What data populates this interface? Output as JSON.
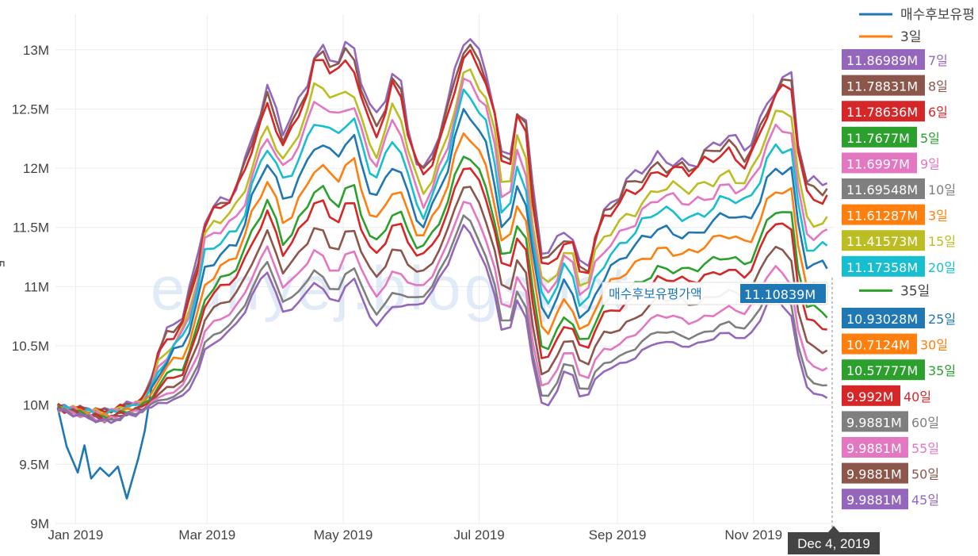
{
  "colors": {
    "s3": "#ff7f0e",
    "s5": "#2ca02c",
    "s6": "#d62728",
    "s7": "#9467bd",
    "s8": "#8c564b",
    "s9": "#e377c2",
    "s10": "#7f7f7f",
    "s15": "#bcbd22",
    "s20": "#17becf",
    "hold": "#1f77b4"
  },
  "hover_header_label": "매수후보유평가액",
  "hover_header_value": "11.10839M",
  "hover_date": "Dec 4, 2019",
  "watermark": "eunyej.blogspot",
  "chart_data": {
    "type": "line",
    "x_range": [
      "2018-12-23",
      "2019-12-07"
    ],
    "ylim": [
      9000000,
      13300000
    ],
    "y_ticks": [
      "9M",
      "9.5M",
      "10M",
      "10.5M",
      "11M",
      "11.5M",
      "12M",
      "12.5M",
      "13M"
    ],
    "x_ticks": [
      {
        "date": "2019-01-01",
        "label": "Jan 2019"
      },
      {
        "date": "2019-03-01",
        "label": "Mar 2019"
      },
      {
        "date": "2019-05-01",
        "label": "May 2019"
      },
      {
        "date": "2019-07-01",
        "label": "Jul 2019"
      },
      {
        "date": "2019-09-01",
        "label": "Sep 2019"
      },
      {
        "date": "2019-11-01",
        "label": "Nov 2019"
      }
    ],
    "y_axis_title_fragment": "5",
    "legend": [
      {
        "name": "매수후보유평",
        "colorKey": "hold"
      },
      {
        "name": "3일",
        "colorKey": "s3"
      }
    ],
    "hover_labels": [
      {
        "value": "11.86989M",
        "name": "7일",
        "colorKey": "s7"
      },
      {
        "value": "11.78831M",
        "name": "8일",
        "colorKey": "s8"
      },
      {
        "value": "11.78636M",
        "name": "6일",
        "colorKey": "s6"
      },
      {
        "value": "11.7677M",
        "name": "5일",
        "colorKey": "s5"
      },
      {
        "value": "11.6997M",
        "name": "9일",
        "colorKey": "s9"
      },
      {
        "value": "11.69548M",
        "name": "10일",
        "colorKey": "s10"
      },
      {
        "value": "11.61287M",
        "name": "3일",
        "colorKey": "s3"
      },
      {
        "value": "11.41573M",
        "name": "15일",
        "colorKey": "s15"
      },
      {
        "value": "11.17358M",
        "name": "20일",
        "colorKey": "s20"
      },
      {
        "value": "",
        "name": "35일",
        "colorKey": "s5"
      },
      {
        "value": "10.93028M",
        "name": "25일",
        "colorKey": "hold"
      },
      {
        "value": "10.7124M",
        "name": "30일",
        "colorKey": "s3"
      },
      {
        "value": "10.57777M",
        "name": "35일",
        "colorKey": "s5"
      },
      {
        "value": "9.992M",
        "name": "40일",
        "colorKey": "s6"
      },
      {
        "value": "9.9881M",
        "name": "60일",
        "colorKey": "s10"
      },
      {
        "value": "9.9881M",
        "name": "55일",
        "colorKey": "s9"
      },
      {
        "value": "9.9881M",
        "name": "50일",
        "colorKey": "s8"
      },
      {
        "value": "9.9881M",
        "name": "45일",
        "colorKey": "s7"
      }
    ],
    "envelope": {
      "top": [
        [
          "2018-12-24",
          9990000
        ],
        [
          "2019-01-15",
          9950000
        ],
        [
          "2019-02-01",
          10050000
        ],
        [
          "2019-02-10",
          10550000
        ],
        [
          "2019-02-20",
          10800000
        ],
        [
          "2019-03-01",
          11650000
        ],
        [
          "2019-03-15",
          11850000
        ],
        [
          "2019-03-28",
          12650000
        ],
        [
          "2019-04-05",
          12300000
        ],
        [
          "2019-04-12",
          12600000
        ],
        [
          "2019-04-20",
          13050000
        ],
        [
          "2019-04-28",
          12900000
        ],
        [
          "2019-05-05",
          13050000
        ],
        [
          "2019-05-15",
          12350000
        ],
        [
          "2019-05-25",
          12900000
        ],
        [
          "2019-06-05",
          11900000
        ],
        [
          "2019-06-15",
          12350000
        ],
        [
          "2019-06-25",
          13150000
        ],
        [
          "2019-07-05",
          12850000
        ],
        [
          "2019-07-13",
          11950000
        ],
        [
          "2019-07-20",
          12650000
        ],
        [
          "2019-07-30",
          11150000
        ],
        [
          "2019-08-10",
          11550000
        ],
        [
          "2019-08-17",
          11100000
        ],
        [
          "2019-08-25",
          11600000
        ],
        [
          "2019-09-05",
          11850000
        ],
        [
          "2019-09-20",
          12100000
        ],
        [
          "2019-10-05",
          12050000
        ],
        [
          "2019-10-20",
          12250000
        ],
        [
          "2019-10-30",
          12150000
        ],
        [
          "2019-11-10",
          12700000
        ],
        [
          "2019-11-18",
          12800000
        ],
        [
          "2019-11-24",
          11850000
        ],
        [
          "2019-12-04",
          11870000
        ]
      ],
      "bottom": [
        [
          "2018-12-24",
          9960000
        ],
        [
          "2019-01-15",
          9850000
        ],
        [
          "2019-02-01",
          9950000
        ],
        [
          "2019-02-10",
          10000000
        ],
        [
          "2019-02-20",
          10050000
        ],
        [
          "2019-03-01",
          10450000
        ],
        [
          "2019-03-15",
          10650000
        ],
        [
          "2019-03-28",
          11100000
        ],
        [
          "2019-04-05",
          10700000
        ],
        [
          "2019-04-12",
          10850000
        ],
        [
          "2019-04-20",
          11000000
        ],
        [
          "2019-04-28",
          10750000
        ],
        [
          "2019-05-05",
          11050000
        ],
        [
          "2019-05-15",
          10600000
        ],
        [
          "2019-05-25",
          10800000
        ],
        [
          "2019-06-05",
          10800000
        ],
        [
          "2019-06-15",
          11050000
        ],
        [
          "2019-06-25",
          11500000
        ],
        [
          "2019-07-05",
          11100000
        ],
        [
          "2019-07-13",
          10500000
        ],
        [
          "2019-07-20",
          10900000
        ],
        [
          "2019-07-30",
          9850000
        ],
        [
          "2019-08-10",
          10300000
        ],
        [
          "2019-08-17",
          10000000
        ],
        [
          "2019-08-25",
          10250000
        ],
        [
          "2019-09-05",
          10300000
        ],
        [
          "2019-09-20",
          10500000
        ],
        [
          "2019-10-05",
          10450000
        ],
        [
          "2019-10-20",
          10550000
        ],
        [
          "2019-10-30",
          10500000
        ],
        [
          "2019-11-10",
          10900000
        ],
        [
          "2019-11-18",
          10700000
        ],
        [
          "2019-11-24",
          10100000
        ],
        [
          "2019-12-04",
          9988100
        ]
      ]
    },
    "series": [
      {
        "name": "7일",
        "colorKey": "s7",
        "frac": 1.0
      },
      {
        "name": "8일",
        "colorKey": "s8",
        "frac": 0.97
      },
      {
        "name": "6일",
        "colorKey": "s6",
        "frac": 0.94
      },
      {
        "name": "15일",
        "colorKey": "s15",
        "frac": 0.84
      },
      {
        "name": "9일",
        "colorKey": "s9",
        "frac": 0.78
      },
      {
        "name": "20일",
        "colorKey": "s20",
        "frac": 0.71
      },
      {
        "name": "매수후보유평가액",
        "colorKey": "hold",
        "frac": 0.62
      },
      {
        "name": "3일",
        "colorKey": "s3",
        "frac": 0.52
      },
      {
        "name": "35일",
        "colorKey": "s5",
        "frac": 0.42
      },
      {
        "name": "40일",
        "colorKey": "s6",
        "frac": 0.36
      },
      {
        "name": "50일",
        "colorKey": "s8",
        "frac": 0.25
      },
      {
        "name": "55일",
        "colorKey": "s9",
        "frac": 0.16
      },
      {
        "name": "60일",
        "colorKey": "s10",
        "frac": 0.08
      },
      {
        "name": "45일",
        "colorKey": "s7",
        "frac": 0.03
      }
    ],
    "hold_early_dip": [
      [
        "2018-12-24",
        9980000
      ],
      [
        "2018-12-28",
        9650000
      ],
      [
        "2019-01-02",
        9430000
      ],
      [
        "2019-01-05",
        9660000
      ],
      [
        "2019-01-08",
        9380000
      ],
      [
        "2019-01-12",
        9470000
      ],
      [
        "2019-01-16",
        9400000
      ],
      [
        "2019-01-20",
        9480000
      ],
      [
        "2019-01-24",
        9210000
      ],
      [
        "2019-01-29",
        9540000
      ],
      [
        "2019-02-01",
        9780000
      ]
    ]
  }
}
